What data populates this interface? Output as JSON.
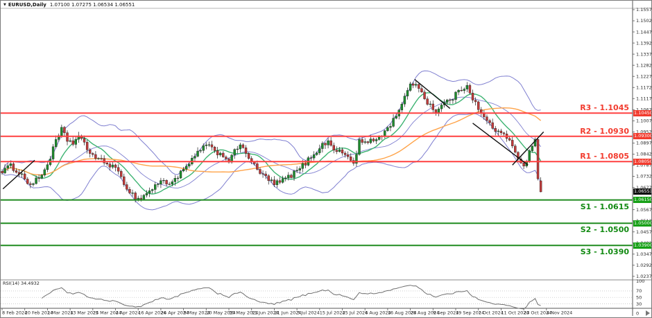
{
  "window_title": {
    "symbol": "EURUSD,Daily",
    "ohlc_text": "1.07100 1.07275 1.06534 1.06551"
  },
  "chart_data": {
    "type": "candlestick",
    "symbol": "EURUSD",
    "timeframe": "Daily",
    "ohlc": {
      "open": "1.07100",
      "high": "1.07275",
      "low": "1.06534",
      "close": "1.06551"
    },
    "x_labels": [
      "8 Feb 2024",
      "20 Feb 2024",
      "1 Mar 2024",
      "13 Mar 2024",
      "25 Mar 2024",
      "4 Apr 2024",
      "16 Apr 2024",
      "26 Apr 2024",
      "8 May 2024",
      "20 May 2024",
      "30 May 2024",
      "11 Jun 2024",
      "21 Jun 2024",
      "3 Jul 2024",
      "15 Jul 2024",
      "25 Jul 2024",
      "6 Aug 2024",
      "16 Aug 2024",
      "28 Aug 2024",
      "9 Sep 2024",
      "19 Sep 2024",
      "1 Oct 2024",
      "11 Oct 2024",
      "23 Oct 2024",
      "4 Nov 2024"
    ],
    "y_ticks": [
      "1.02370",
      "1.02920",
      "1.03470",
      "1.04020",
      "1.04570",
      "1.05120",
      "1.05670",
      "1.06220",
      "1.06770",
      "1.07320",
      "1.07870",
      "1.08420",
      "1.08970",
      "1.09520",
      "1.10070",
      "1.10620",
      "1.11170",
      "1.11720",
      "1.12270",
      "1.12820",
      "1.13370",
      "1.13920",
      "1.14470",
      "1.15020",
      "1.15570"
    ],
    "y_range_note": "price axis approx 1.022 - 1.156, grid off",
    "levels": {
      "resistance": [
        {
          "name": "R3",
          "label": "R3 - 1.1045",
          "price": 1.1045,
          "axis_label": "1.10450"
        },
        {
          "name": "R2",
          "label": "R2 - 1.0930",
          "price": 1.093,
          "axis_label": "1.09300"
        },
        {
          "name": "R1",
          "label": "R1 - 1.0805",
          "price": 1.0805,
          "axis_label": "1.08050"
        }
      ],
      "support": [
        {
          "name": "S1",
          "label": "S1 - 1.0615",
          "price": 1.0615,
          "axis_label": "1.06150"
        },
        {
          "name": "S2",
          "label": "S2 - 1.0500",
          "price": 1.05,
          "axis_label": "1.05000"
        },
        {
          "name": "S3",
          "label": "S3 - 1.0390",
          "price": 1.039,
          "axis_label": "1.03900"
        }
      ]
    },
    "current_price": {
      "value": 1.06551,
      "axis_label": "1.06551"
    },
    "last_candle": {
      "open": 1.071,
      "high": 1.07275,
      "low": 1.06534,
      "close": 1.06551
    },
    "close_waypoints": [
      [
        0,
        1.076
      ],
      [
        3,
        1.0782
      ],
      [
        6,
        1.0752
      ],
      [
        10,
        1.069
      ],
      [
        13,
        1.0722
      ],
      [
        16,
        1.079
      ],
      [
        19,
        1.0905
      ],
      [
        21,
        1.0962
      ],
      [
        23,
        1.0912
      ],
      [
        25,
        1.0898
      ],
      [
        27,
        1.093
      ],
      [
        30,
        1.0868
      ],
      [
        33,
        1.0825
      ],
      [
        36,
        1.08
      ],
      [
        39,
        1.0785
      ],
      [
        42,
        1.0725
      ],
      [
        45,
        1.0655
      ],
      [
        48,
        1.0618
      ],
      [
        51,
        1.0648
      ],
      [
        54,
        1.0685
      ],
      [
        56,
        1.0712
      ],
      [
        58,
        1.0695
      ],
      [
        61,
        1.0718
      ],
      [
        64,
        1.0762
      ],
      [
        67,
        1.081
      ],
      [
        70,
        1.0868
      ],
      [
        72,
        1.0885
      ],
      [
        75,
        1.0858
      ],
      [
        78,
        1.0835
      ],
      [
        80,
        1.0812
      ],
      [
        83,
        1.0872
      ],
      [
        85,
        1.088
      ],
      [
        88,
        1.08
      ],
      [
        91,
        1.0748
      ],
      [
        94,
        1.0718
      ],
      [
        96,
        1.0692
      ],
      [
        99,
        1.0712
      ],
      [
        102,
        1.0738
      ],
      [
        104,
        1.0758
      ],
      [
        107,
        1.0798
      ],
      [
        110,
        1.0845
      ],
      [
        113,
        1.0888
      ],
      [
        115,
        1.0902
      ],
      [
        118,
        1.0858
      ],
      [
        121,
        1.0842
      ],
      [
        124,
        1.0795
      ],
      [
        126,
        1.0905
      ],
      [
        129,
        1.0898
      ],
      [
        132,
        1.0918
      ],
      [
        135,
        1.0952
      ],
      [
        138,
        1.101
      ],
      [
        141,
        1.1095
      ],
      [
        144,
        1.1178
      ],
      [
        146,
        1.1198
      ],
      [
        149,
        1.1118
      ],
      [
        153,
        1.1052
      ],
      [
        156,
        1.1095
      ],
      [
        159,
        1.1122
      ],
      [
        162,
        1.1165
      ],
      [
        164,
        1.1185
      ],
      [
        166,
        1.1122
      ],
      [
        168,
        1.1062
      ],
      [
        171,
        1.1005
      ],
      [
        174,
        1.0962
      ],
      [
        177,
        1.0932
      ],
      [
        180,
        1.0888
      ],
      [
        182,
        1.0825
      ],
      [
        184,
        1.0785
      ],
      [
        186,
        1.0848
      ],
      [
        188,
        1.0915
      ],
      [
        189,
        1.072
      ],
      [
        190,
        1.06551
      ]
    ],
    "trendlines": [
      {
        "c1": 0.3,
        "p1": 1.067,
        "c2": 11.5,
        "p2": 1.0812
      },
      {
        "c1": 145.5,
        "p1": 1.1212,
        "c2": 158.0,
        "p2": 1.1068
      },
      {
        "c1": 166.0,
        "p1": 1.0995,
        "c2": 185.5,
        "p2": 1.0788
      },
      {
        "c1": 180.0,
        "p1": 1.0788,
        "c2": 191.0,
        "p2": 1.0952
      }
    ],
    "indicators": {
      "bollinger": {
        "period": 20,
        "deviation": 2,
        "color": "#7f7fd0"
      },
      "ma_fast": {
        "period": 10,
        "color": "#3cb371"
      },
      "ma_slow": {
        "period": 45,
        "color": "#ffa348"
      }
    },
    "rsi": {
      "label": "RSI(14) 34.4932",
      "period": 14,
      "value": 34.4932,
      "scale_labels": [
        "100",
        "70",
        "50",
        "30",
        "0"
      ],
      "scale_values": [
        100,
        70,
        50,
        30,
        0
      ],
      "level_lines": [
        70,
        50,
        30
      ],
      "line_color": "#6e6e6e"
    },
    "colors": {
      "up_candle": "#1e8c2e",
      "down_candle": "#c13b3b",
      "wick": "#1a1a1a",
      "resistance_line": "#ff4040",
      "support_line": "#1f8b1f",
      "trendline": "#111111",
      "axis_text": "#2b2b2b",
      "resistance_box": "#f23b2e",
      "support_box": "#16a016",
      "current_box": "#101010"
    }
  }
}
